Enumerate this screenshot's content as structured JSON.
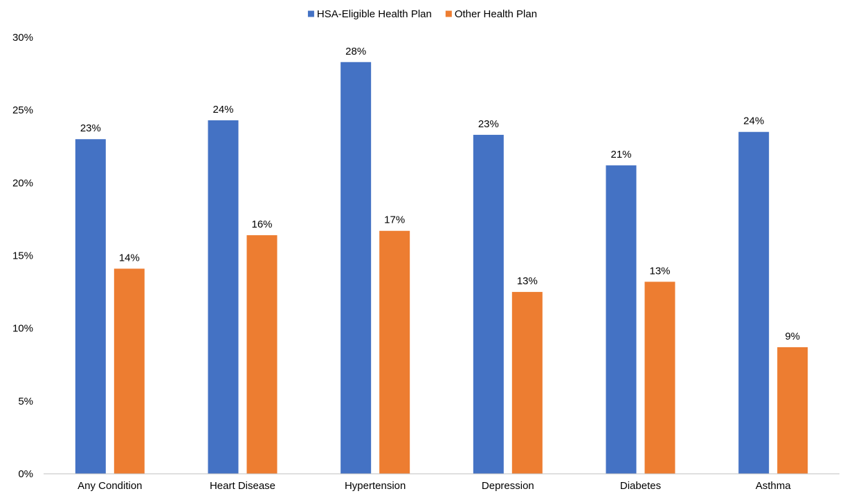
{
  "chart_data": {
    "type": "bar",
    "title": "",
    "xlabel": "",
    "ylabel": "",
    "categories": [
      "Any Condition",
      "Heart Disease",
      "Hypertension",
      "Depression",
      "Diabetes",
      "Asthma"
    ],
    "series": [
      {
        "name": "HSA-Eligible Health Plan",
        "color": "#4472C4",
        "values": [
          23.0,
          24.3,
          28.3,
          23.3,
          21.2,
          23.5
        ],
        "labels": [
          "23%",
          "24%",
          "28%",
          "23%",
          "21%",
          "24%"
        ]
      },
      {
        "name": "Other Health Plan",
        "color": "#ED7D31",
        "values": [
          14.1,
          16.4,
          16.7,
          12.5,
          13.2,
          8.7
        ],
        "labels": [
          "14%",
          "16%",
          "17%",
          "13%",
          "13%",
          "9%"
        ]
      }
    ],
    "ylim": [
      0,
      30
    ],
    "yticks": [
      0,
      5,
      10,
      15,
      20,
      25,
      30
    ],
    "ytick_labels": [
      "0%",
      "5%",
      "10%",
      "15%",
      "20%",
      "25%",
      "30%"
    ],
    "grid": false,
    "legend_position": "top-center"
  }
}
